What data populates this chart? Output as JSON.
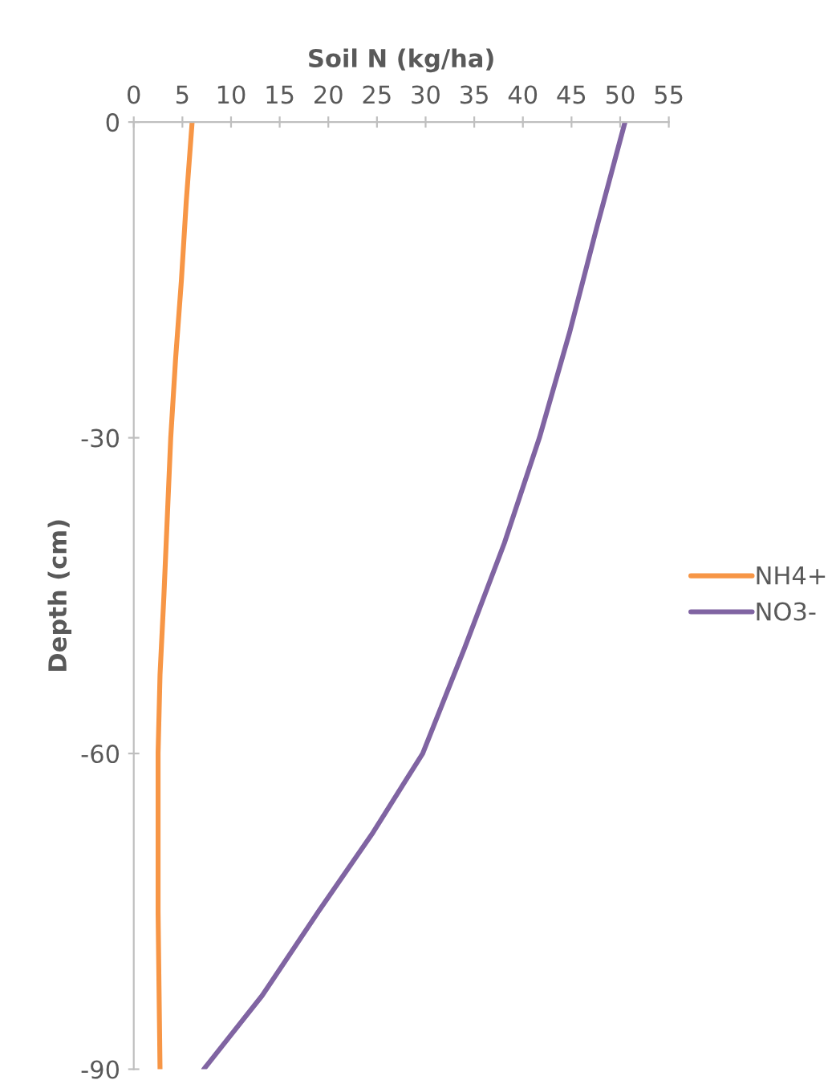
{
  "chart_data": {
    "type": "line",
    "xlabel": "Soil N (kg/ha)",
    "ylabel": "Depth (cm)",
    "xlim": [
      0,
      55
    ],
    "xticks": [
      0,
      5,
      10,
      15,
      20,
      25,
      30,
      35,
      40,
      45,
      50,
      55
    ],
    "ylim": [
      -90,
      0
    ],
    "yticks": [
      0,
      -30,
      -60,
      -90
    ],
    "grid": false,
    "legend": "right",
    "marker": "none",
    "line_style": "solid",
    "series": [
      {
        "name": "NH4+",
        "color": "#f79646",
        "x": [
          6.0,
          5.4,
          4.9,
          4.3,
          3.8,
          3.1,
          2.7,
          2.5,
          2.5,
          2.6,
          2.7
        ],
        "values": [
          0,
          -7.5,
          -15,
          -22.5,
          -30,
          -45,
          -52.5,
          -60,
          -75,
          -82.5,
          -90
        ]
      },
      {
        "name": "NO3-",
        "color": "#8064a2",
        "x": [
          50.5,
          47.6,
          44.8,
          41.7,
          38.1,
          34.0,
          29.7,
          24.6,
          19.0,
          13.2,
          7.2
        ],
        "values": [
          0,
          -10,
          -20,
          -30,
          -40,
          -50,
          -60,
          -67.5,
          -75,
          -83,
          -90
        ]
      }
    ]
  }
}
